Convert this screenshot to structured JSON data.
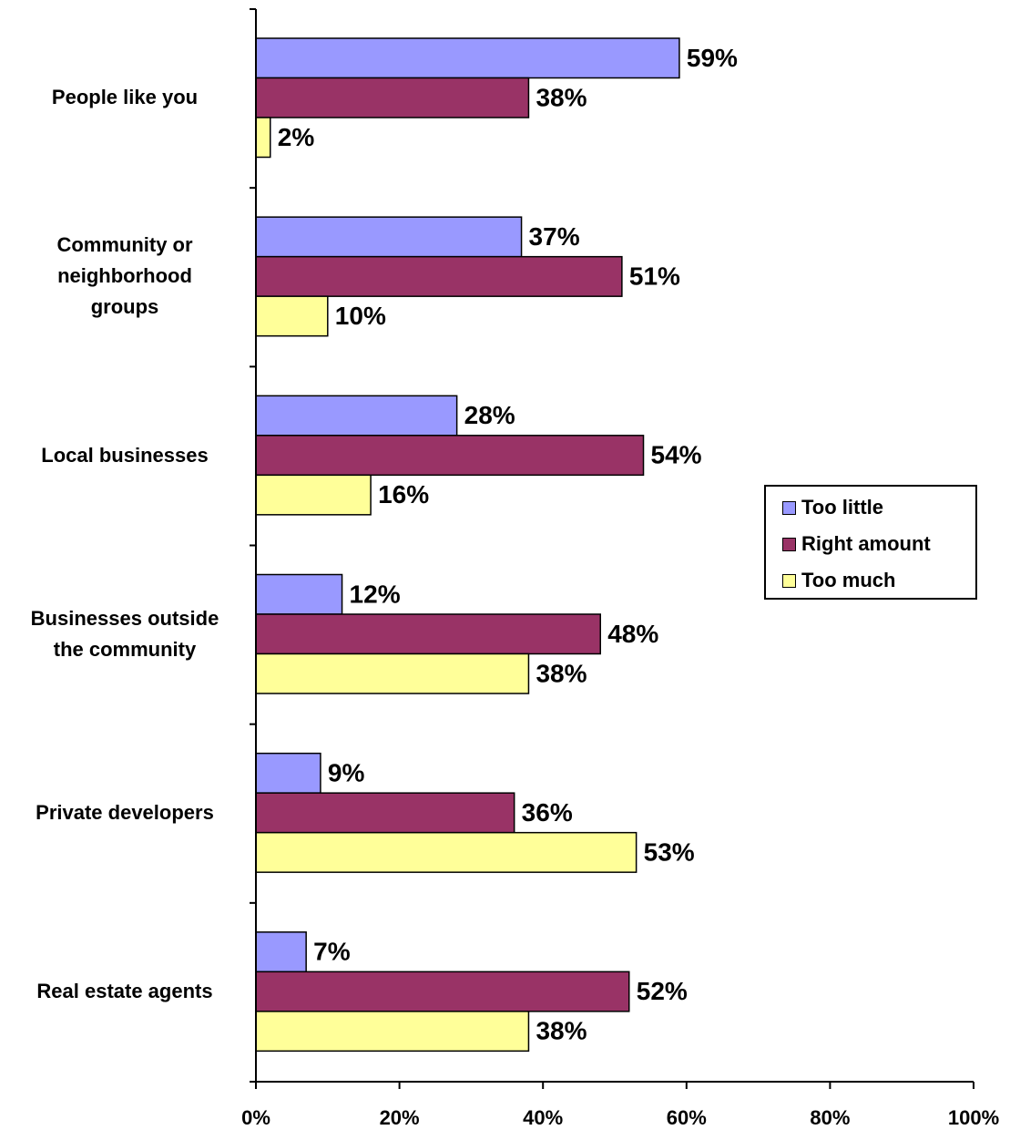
{
  "chart_data": {
    "type": "bar",
    "orientation": "horizontal",
    "categories": [
      "People like you",
      "Community or\nneighborhood\ngroups",
      "Local businesses",
      "Businesses outside\nthe community",
      "Private developers",
      "Real estate agents"
    ],
    "series": [
      {
        "name": "Too little",
        "color": "#9999ff",
        "values": [
          59,
          37,
          28,
          12,
          9,
          7
        ],
        "labels": [
          "59%",
          "37%",
          "28%",
          "12%",
          "9%",
          "7%"
        ]
      },
      {
        "name": "Right amount",
        "color": "#993366",
        "values": [
          38,
          51,
          54,
          48,
          36,
          52
        ],
        "labels": [
          "38%",
          "51%",
          "54%",
          "48%",
          "36%",
          "52%"
        ]
      },
      {
        "name": "Too much",
        "color": "#ffff99",
        "values": [
          2,
          10,
          16,
          38,
          53,
          38
        ],
        "labels": [
          "2%",
          "10%",
          "16%",
          "38%",
          "53%",
          "38%"
        ]
      }
    ],
    "x_ticks": [
      "0%",
      "20%",
      "40%",
      "60%",
      "80%",
      "100%"
    ],
    "xlim": [
      0,
      100
    ],
    "grid": false,
    "legend_position": "right"
  }
}
